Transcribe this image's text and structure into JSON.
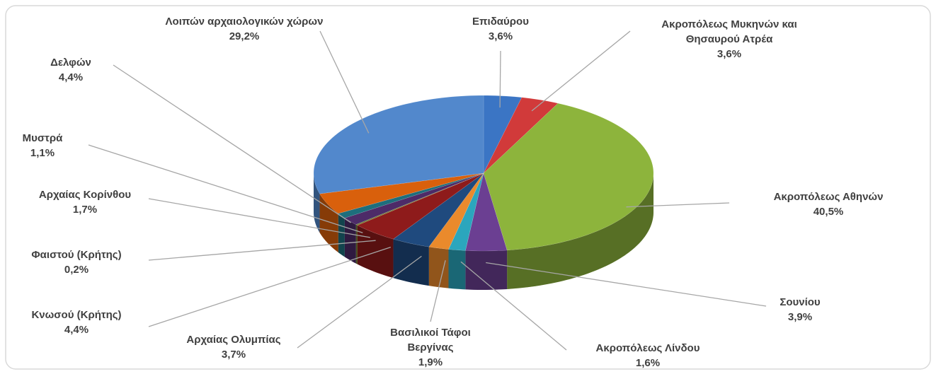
{
  "chart_data": {
    "type": "pie3d",
    "categories": [
      "Επιδαύρου",
      "Ακροπόλεως Μυκηνών και Θησαυρού Ατρέα",
      "Ακροπόλεως Αθηνών",
      "Σουνίου",
      "Ακροπόλεως Λίνδου",
      "Βασιλικοί Τάφοι Βεργίνας",
      "Αρχαίας Ολυμπίας",
      "Κνωσού (Κρήτης)",
      "Φαιστού (Κρήτης)",
      "Αρχαίας Κορίνθου",
      "Μυστρά",
      "Δελφών",
      "Λοιπών αρχαιολογικών χώρων"
    ],
    "values": [
      3.6,
      3.6,
      40.5,
      3.9,
      1.6,
      1.9,
      3.7,
      4.4,
      0.2,
      1.7,
      1.1,
      4.4,
      29.2
    ],
    "value_labels": [
      "3,6%",
      "3,6%",
      "40,5%",
      "3,9%",
      "1,6%",
      "1,9%",
      "3,7%",
      "4,4%",
      "0,2%",
      "1,7%",
      "1,1%",
      "4,4%",
      "29,2%"
    ],
    "colors": [
      "#3b75c4",
      "#d13a3a",
      "#8db43c",
      "#6b3f92",
      "#2ba6bd",
      "#ea8a2c",
      "#1f4a7e",
      "#8e1b1b",
      "#6f7d2c",
      "#4d2b68",
      "#1e6e7c",
      "#d9600c",
      "#5288cc"
    ]
  }
}
